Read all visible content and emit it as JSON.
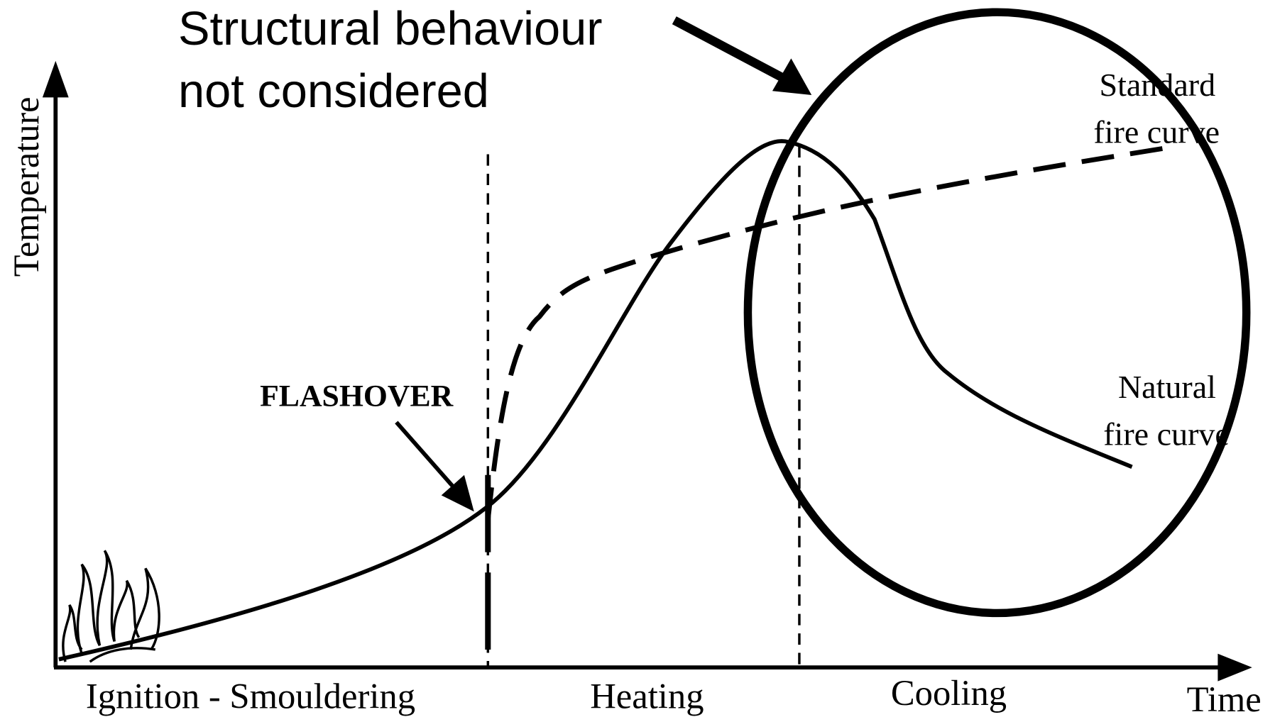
{
  "annotation": {
    "lines": [
      "Structural behaviour",
      "not considered"
    ]
  },
  "axes": {
    "y_label": "Temperature",
    "x_label": "Time"
  },
  "flashover": "FLASHOVER",
  "curves": {
    "standard": {
      "lines": [
        "Standard",
        "fire curve"
      ]
    },
    "natural": {
      "lines": [
        "Natural",
        "fire curve"
      ]
    }
  },
  "phases": [
    "Ignition - Smouldering",
    "Heating",
    "Cooling"
  ]
}
